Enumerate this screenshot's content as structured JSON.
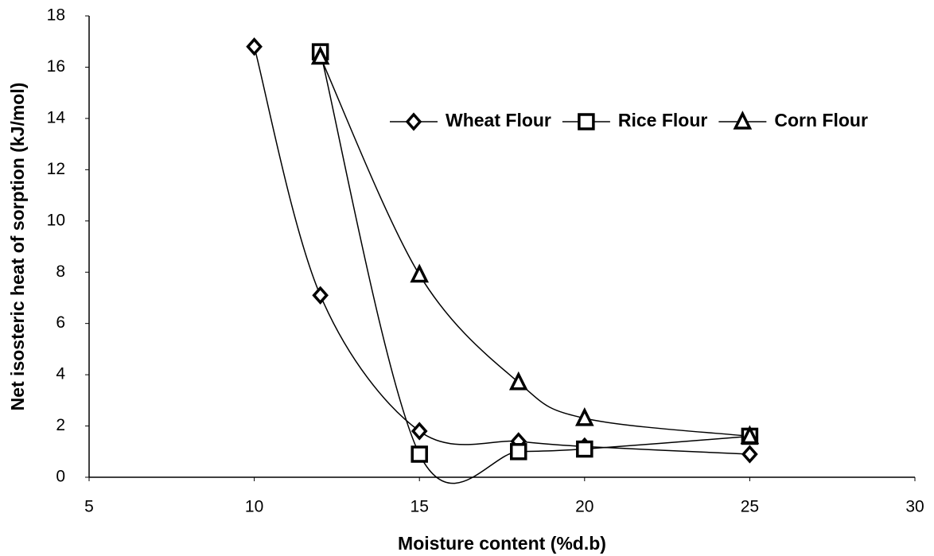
{
  "chart_data": {
    "type": "scatter-smooth",
    "x_label": "Moisture content (%d.b)",
    "y_label": "Net isosteric heat of sorption (kJ/mol)",
    "xlim": [
      5,
      30
    ],
    "xticks": [
      5,
      10,
      15,
      20,
      25,
      30
    ],
    "ylim": [
      0,
      18
    ],
    "yticks": [
      0,
      2,
      4,
      6,
      8,
      10,
      12,
      14,
      16,
      18
    ],
    "grid": false,
    "legend": "top-right",
    "series": [
      {
        "name": "Wheat Flour",
        "color": "#000000",
        "marker": "diamond",
        "x": [
          10,
          12,
          15,
          18,
          20,
          25
        ],
        "values": [
          16.8,
          7.1,
          1.8,
          1.4,
          1.2,
          0.9
        ]
      },
      {
        "name": "Rice Flour",
        "color": "#000000",
        "marker": "square",
        "x": [
          12,
          15,
          18,
          20,
          25
        ],
        "values": [
          16.6,
          0.9,
          1.0,
          1.1,
          1.6
        ]
      },
      {
        "name": "Corn Flour",
        "color": "#000000",
        "marker": "triangle",
        "x": [
          12,
          15,
          18,
          20,
          25
        ],
        "values": [
          16.4,
          7.9,
          3.7,
          2.3,
          1.6
        ]
      }
    ]
  }
}
